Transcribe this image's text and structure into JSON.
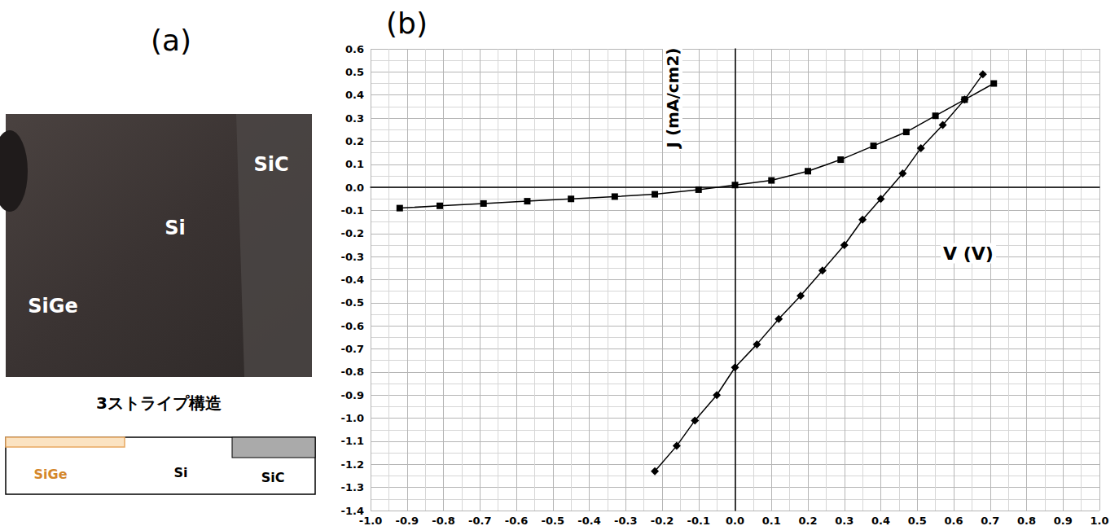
{
  "panel_labels": [
    "(a)",
    "(b)"
  ],
  "panel_a": {
    "photo_labels": [
      "SiC",
      "Si",
      "SiGe"
    ],
    "caption": "3ストライプ構造",
    "schematic_labels": [
      "SiGe",
      "Si",
      "SiC"
    ]
  },
  "chart_data": {
    "type": "line",
    "x_label": "V (V)",
    "y_label": "J (mA/cm2)",
    "xlim": [
      -1,
      1
    ],
    "ylim": [
      -1.4,
      0.6
    ],
    "xticks": [
      {
        "value": -1,
        "label": "-1.0"
      },
      -0.9,
      -0.8,
      -0.7,
      -0.6,
      -0.5,
      -0.4,
      -0.3,
      -0.2,
      -0.1,
      {
        "value": 0,
        "label": "0.0"
      },
      0.1,
      0.2,
      0.3,
      0.4,
      0.5,
      0.6,
      0.7,
      0.8,
      0.9,
      {
        "value": 1,
        "label": "1.0"
      }
    ],
    "yticks": [
      -1.4,
      -1.3,
      -1.2,
      -1.1,
      {
        "value": -1,
        "label": "-1.0"
      },
      -0.9,
      -0.8,
      -0.7,
      -0.6,
      -0.5,
      -0.4,
      -0.3,
      -0.2,
      -0.1,
      {
        "value": 0,
        "label": "0.0"
      },
      0.1,
      0.2,
      0.3,
      0.4,
      0.5,
      0.6
    ],
    "grid": true,
    "series": [
      {
        "marker": "square",
        "color": "#000000",
        "x": [
          -0.92,
          -0.81,
          -0.69,
          -0.57,
          -0.45,
          -0.33,
          -0.22,
          -0.1,
          0.0,
          0.1,
          0.2,
          0.29,
          0.38,
          0.47,
          0.55,
          0.63,
          0.71
        ],
        "values": [
          -0.09,
          -0.08,
          -0.07,
          -0.06,
          -0.05,
          -0.04,
          -0.03,
          -0.01,
          0.01,
          0.03,
          0.07,
          0.12,
          0.18,
          0.24,
          0.31,
          0.38,
          0.45
        ]
      },
      {
        "marker": "diamond",
        "color": "#000000",
        "x": [
          -0.22,
          -0.16,
          -0.11,
          -0.05,
          0.0,
          0.06,
          0.12,
          0.18,
          0.24,
          0.3,
          0.35,
          0.4,
          0.46,
          0.51,
          0.57,
          0.63,
          0.68
        ],
        "values": [
          -1.23,
          -1.12,
          -1.01,
          -0.9,
          -0.78,
          -0.68,
          -0.57,
          -0.47,
          -0.36,
          -0.25,
          -0.14,
          -0.05,
          0.06,
          0.17,
          0.27,
          0.38,
          0.49
        ]
      }
    ]
  }
}
